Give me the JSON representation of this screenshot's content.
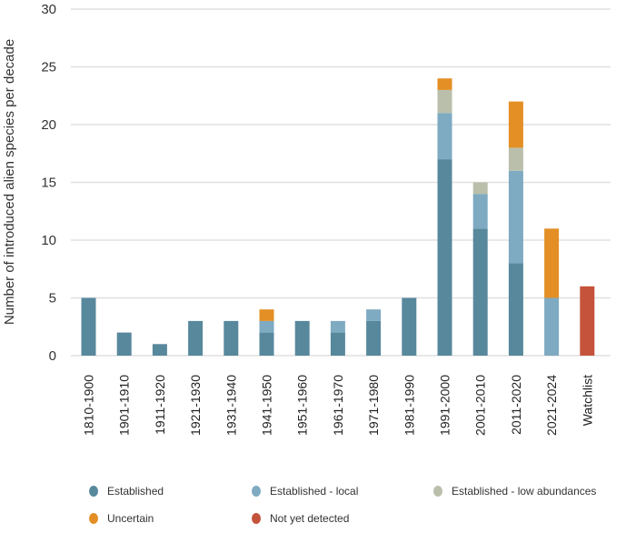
{
  "chart_data": {
    "type": "bar",
    "stacked": true,
    "title": "",
    "xlabel": "",
    "ylabel": "Number of introduced alien species per decade",
    "ylim": [
      0,
      30
    ],
    "yticks": [
      0,
      5,
      10,
      15,
      20,
      25,
      30
    ],
    "grid": true,
    "legend_position": "bottom",
    "categories": [
      "1810-1900",
      "1901-1910",
      "1911-1920",
      "1921-1930",
      "1931-1940",
      "1941-1950",
      "1951-1960",
      "1961-1970",
      "1971-1980",
      "1981-1990",
      "1991-2000",
      "2001-2010",
      "2011-2020",
      "2021-2024",
      "Watchlist"
    ],
    "series": [
      {
        "name": "Established",
        "color": "#58889c",
        "values": [
          5,
          2,
          1,
          3,
          3,
          2,
          3,
          2,
          3,
          5,
          17,
          11,
          8,
          0,
          0
        ]
      },
      {
        "name": "Established - local",
        "color": "#7eaac2",
        "values": [
          0,
          0,
          0,
          0,
          0,
          1,
          0,
          1,
          1,
          0,
          4,
          3,
          8,
          5,
          0
        ]
      },
      {
        "name": "Established - low abundances",
        "color": "#b9bfab",
        "values": [
          0,
          0,
          0,
          0,
          0,
          0,
          0,
          0,
          0,
          0,
          2,
          1,
          2,
          0,
          0
        ]
      },
      {
        "name": "Uncertain",
        "color": "#e38f25",
        "values": [
          0,
          0,
          0,
          0,
          0,
          1,
          0,
          0,
          0,
          0,
          1,
          0,
          4,
          6,
          0
        ]
      },
      {
        "name": "Not yet detected",
        "color": "#c5533b",
        "values": [
          0,
          0,
          0,
          0,
          0,
          0,
          0,
          0,
          0,
          0,
          0,
          0,
          0,
          0,
          6
        ]
      }
    ]
  }
}
